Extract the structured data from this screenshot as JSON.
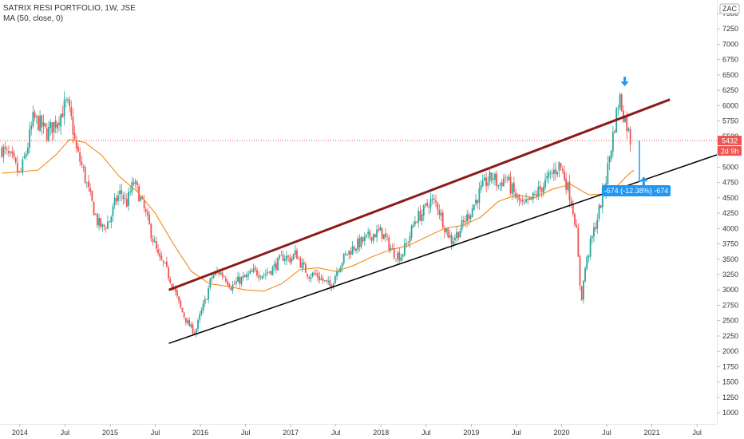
{
  "legend": {
    "title": "SATRIX RESI PORTFOLIO, 1W, JSE",
    "indicator": "MA (50, close, 0)"
  },
  "currency": "ZAC",
  "price_tag": "5432",
  "countdown_tag": "2d 9h",
  "measure_label": "-674 (-12.38%) -674",
  "colors": {
    "up": "#26a69a",
    "down": "#ef5350",
    "ma": "#f57c00",
    "channel_upper": "#8b1a1a",
    "channel_lower": "#000000",
    "measure": "#2196f3",
    "price_line": "#ef5350"
  },
  "chart_data": {
    "type": "candlestick",
    "title": "SATRIX RESI PORTFOLIO, 1W, JSE",
    "y_ticks": [
      1000,
      1250,
      1500,
      1750,
      2000,
      2250,
      2500,
      2750,
      3000,
      3250,
      3500,
      3750,
      4000,
      4250,
      4500,
      4750,
      5000,
      5250,
      5500,
      5750,
      6000,
      6250,
      6500,
      6750,
      7000,
      7250,
      7500
    ],
    "ylim": [
      820,
      7720
    ],
    "x_ticks": [
      "2014",
      "Jul",
      "2015",
      "Jul",
      "2016",
      "Jul",
      "2017",
      "Jul",
      "2018",
      "Jul",
      "2019",
      "Jul",
      "2020",
      "Jul",
      "2021",
      "Jul"
    ],
    "x_tick_dates": [
      2014.0,
      2014.5,
      2015.0,
      2015.5,
      2016.0,
      2016.5,
      2017.0,
      2017.5,
      2018.0,
      2018.5,
      2019.0,
      2019.5,
      2020.0,
      2020.5,
      2021.0,
      2021.5
    ],
    "xlim": [
      2013.78,
      2021.72
    ],
    "price_anchors": [
      [
        2013.8,
        5300
      ],
      [
        2013.92,
        5100
      ],
      [
        2014.0,
        4850
      ],
      [
        2014.08,
        5300
      ],
      [
        2014.15,
        5800
      ],
      [
        2014.22,
        5700
      ],
      [
        2014.3,
        5550
      ],
      [
        2014.38,
        5700
      ],
      [
        2014.45,
        5850
      ],
      [
        2014.52,
        6050
      ],
      [
        2014.58,
        5700
      ],
      [
        2014.62,
        5300
      ],
      [
        2014.7,
        4950
      ],
      [
        2014.78,
        4500
      ],
      [
        2014.86,
        4100
      ],
      [
        2014.92,
        4000
      ],
      [
        2015.0,
        4150
      ],
      [
        2015.06,
        4450
      ],
      [
        2015.12,
        4600
      ],
      [
        2015.18,
        4400
      ],
      [
        2015.26,
        4750
      ],
      [
        2015.32,
        4550
      ],
      [
        2015.4,
        4200
      ],
      [
        2015.46,
        3900
      ],
      [
        2015.54,
        3500
      ],
      [
        2015.6,
        3400
      ],
      [
        2015.7,
        3050
      ],
      [
        2015.78,
        2700
      ],
      [
        2015.86,
        2450
      ],
      [
        2015.94,
        2300
      ],
      [
        2016.0,
        2600
      ],
      [
        2016.06,
        2850
      ],
      [
        2016.12,
        3200
      ],
      [
        2016.2,
        3300
      ],
      [
        2016.28,
        3200
      ],
      [
        2016.34,
        3050
      ],
      [
        2016.42,
        3150
      ],
      [
        2016.5,
        3200
      ],
      [
        2016.6,
        3300
      ],
      [
        2016.7,
        3250
      ],
      [
        2016.8,
        3350
      ],
      [
        2016.92,
        3550
      ],
      [
        2017.0,
        3500
      ],
      [
        2017.06,
        3600
      ],
      [
        2017.12,
        3400
      ],
      [
        2017.2,
        3250
      ],
      [
        2017.28,
        3250
      ],
      [
        2017.36,
        3150
      ],
      [
        2017.44,
        3050
      ],
      [
        2017.52,
        3350
      ],
      [
        2017.6,
        3550
      ],
      [
        2017.7,
        3700
      ],
      [
        2017.8,
        3800
      ],
      [
        2017.9,
        3900
      ],
      [
        2018.0,
        3950
      ],
      [
        2018.06,
        3800
      ],
      [
        2018.14,
        3600
      ],
      [
        2018.22,
        3550
      ],
      [
        2018.3,
        3800
      ],
      [
        2018.38,
        4150
      ],
      [
        2018.46,
        4250
      ],
      [
        2018.54,
        4450
      ],
      [
        2018.62,
        4400
      ],
      [
        2018.7,
        4050
      ],
      [
        2018.78,
        3800
      ],
      [
        2018.86,
        3950
      ],
      [
        2018.94,
        4150
      ],
      [
        2019.0,
        4300
      ],
      [
        2019.08,
        4550
      ],
      [
        2019.16,
        4750
      ],
      [
        2019.24,
        4850
      ],
      [
        2019.3,
        4700
      ],
      [
        2019.38,
        4850
      ],
      [
        2019.44,
        4650
      ],
      [
        2019.5,
        4500
      ],
      [
        2019.58,
        4350
      ],
      [
        2019.66,
        4450
      ],
      [
        2019.74,
        4600
      ],
      [
        2019.82,
        4750
      ],
      [
        2019.9,
        4900
      ],
      [
        2019.98,
        5050
      ],
      [
        2020.04,
        4800
      ],
      [
        2020.1,
        4500
      ],
      [
        2020.16,
        4050
      ],
      [
        2020.2,
        3150
      ],
      [
        2020.22,
        2850
      ],
      [
        2020.26,
        3350
      ],
      [
        2020.32,
        3750
      ],
      [
        2020.4,
        4200
      ],
      [
        2020.48,
        4700
      ],
      [
        2020.54,
        5250
      ],
      [
        2020.6,
        5800
      ],
      [
        2020.64,
        6150
      ],
      [
        2020.68,
        5900
      ],
      [
        2020.72,
        5700
      ],
      [
        2020.76,
        5450
      ],
      [
        2020.78,
        5432
      ]
    ],
    "ma": [
      [
        2013.8,
        4900
      ],
      [
        2014.2,
        4950
      ],
      [
        2014.4,
        5200
      ],
      [
        2014.55,
        5450
      ],
      [
        2014.72,
        5400
      ],
      [
        2014.9,
        5200
      ],
      [
        2015.1,
        4850
      ],
      [
        2015.3,
        4600
      ],
      [
        2015.5,
        4250
      ],
      [
        2015.7,
        3750
      ],
      [
        2015.9,
        3300
      ],
      [
        2016.1,
        3100
      ],
      [
        2016.3,
        3060
      ],
      [
        2016.5,
        3000
      ],
      [
        2016.7,
        2980
      ],
      [
        2016.9,
        3100
      ],
      [
        2017.1,
        3330
      ],
      [
        2017.3,
        3360
      ],
      [
        2017.5,
        3300
      ],
      [
        2017.7,
        3400
      ],
      [
        2017.9,
        3540
      ],
      [
        2018.1,
        3650
      ],
      [
        2018.3,
        3720
      ],
      [
        2018.5,
        3860
      ],
      [
        2018.7,
        4000
      ],
      [
        2018.9,
        4050
      ],
      [
        2019.1,
        4180
      ],
      [
        2019.3,
        4440
      ],
      [
        2019.5,
        4550
      ],
      [
        2019.7,
        4500
      ],
      [
        2019.9,
        4640
      ],
      [
        2020.1,
        4720
      ],
      [
        2020.3,
        4550
      ],
      [
        2020.5,
        4560
      ],
      [
        2020.62,
        4700
      ],
      [
        2020.74,
        4880
      ],
      [
        2020.8,
        4950
      ]
    ],
    "channel_upper": [
      [
        2015.65,
        3000
      ],
      [
        2021.2,
        6100
      ]
    ],
    "channel_lower": [
      [
        2015.65,
        2130
      ],
      [
        2021.72,
        5200
      ]
    ],
    "measure": {
      "from": [
        2020.8,
        5432
      ],
      "to": [
        2020.8,
        4758
      ],
      "value": -674,
      "percent": -12.38
    },
    "last_price": 5432,
    "markers": [
      {
        "type": "down-arrow",
        "x": 2020.7,
        "y": 6380
      },
      {
        "type": "up-arrow",
        "x": 2020.91,
        "y": 4780
      }
    ]
  }
}
